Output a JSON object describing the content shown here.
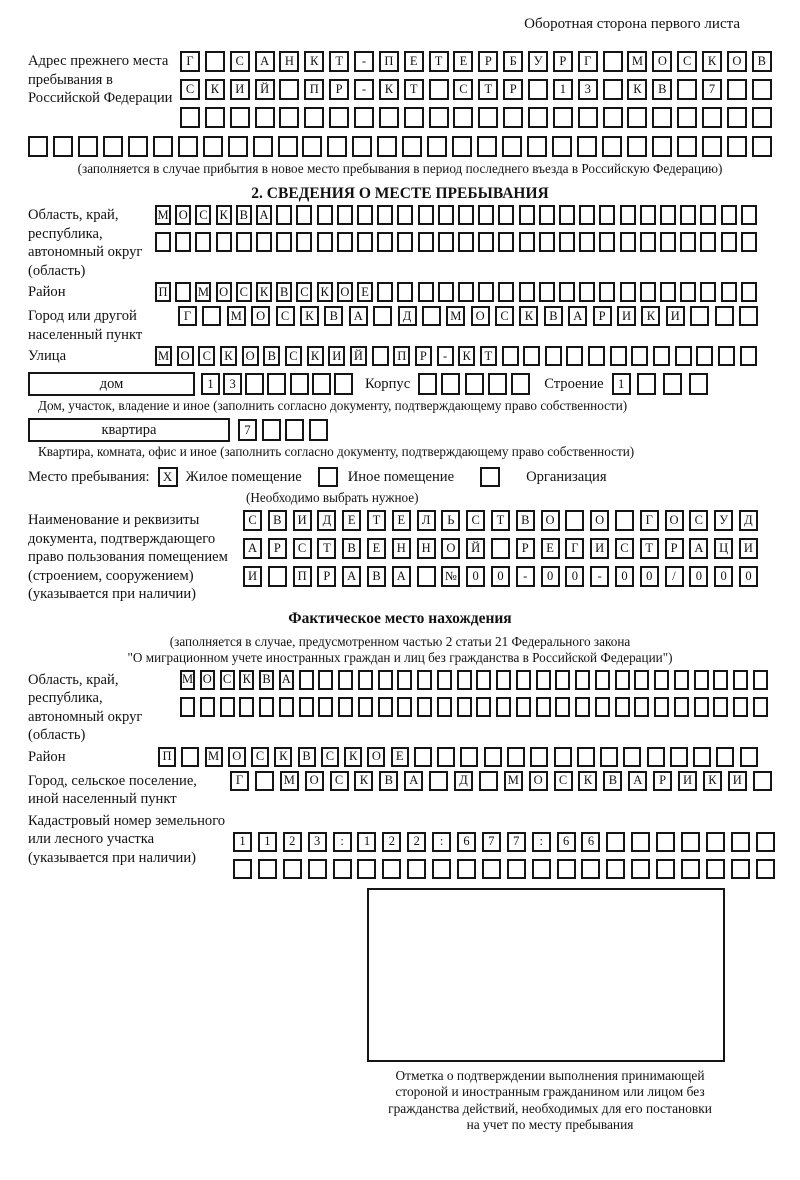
{
  "page": {
    "side_note": "Оборотная сторона первого листа"
  },
  "prev_address": {
    "label": "Адрес прежнего места пребывания в Российской Федерации",
    "row1": {
      "count": 24,
      "cells": "Г САНКТ-ПЕТЕРБУРГ МОСКОВ"
    },
    "row2": {
      "count": 24,
      "cells": "СКИЙ ПР-КТ СТР 13 КВ 7"
    },
    "row3": {
      "count": 24,
      "cells": ""
    },
    "row4": {
      "count": 30,
      "cells": ""
    },
    "note": "(заполняется в случае прибытия в новое место пребывания в период последнего въезда в Российскую Федерацию)"
  },
  "section2": {
    "title": "2. СВЕДЕНИЯ О МЕСТЕ ПРЕБЫВАНИЯ",
    "region": {
      "label": "Область, край, республика, автономный округ (область)",
      "row1": {
        "count": 30,
        "cells": "МОСКВА"
      },
      "row2": {
        "count": 30,
        "cells": ""
      }
    },
    "district": {
      "label": "Район",
      "row": {
        "count": 30,
        "cells": "П МОСКВСКОЕ"
      }
    },
    "city": {
      "label": "Город или другой населенный пункт",
      "row": {
        "count": 24,
        "cells": "Г МОСКВА Д МОСКВАРИКИ"
      }
    },
    "street": {
      "label": "Улица",
      "row": {
        "count": 28,
        "cells": "МОСКОВСКИЙ ПР-КТ"
      }
    },
    "house": {
      "box_label": "дом",
      "row": {
        "count": 7,
        "cells": "13"
      },
      "korpus_label": "Корпус",
      "korpus_row": {
        "count": 5,
        "cells": ""
      },
      "stroenie_label": "Строение",
      "stroenie_row": {
        "count": 4,
        "cells": "1"
      },
      "note": "Дом, участок, владение и иное (заполнить согласно документу, подтверждающему право собственности)"
    },
    "apartment": {
      "box_label": "квартира",
      "row": {
        "count": 4,
        "cells": "7"
      },
      "note": "Квартира, комната, офис и иное (заполнить согласно документу, подтверждающему право собственности)"
    },
    "stay_type": {
      "label": "Место пребывания:",
      "options": [
        {
          "label": "Жилое помещение",
          "mark": "X"
        },
        {
          "label": "Иное помещение",
          "mark": ""
        },
        {
          "label": "Организация",
          "mark": ""
        }
      ],
      "note": "(Необходимо выбрать нужное)"
    },
    "document": {
      "label": "Наименование и реквизиты документа, подтверждающего право пользования помещением (строением, сооружением) (указывается при наличии)",
      "row1": {
        "count": 21,
        "cells": "СВИДЕТЕЛЬСТВО О ГОСУД"
      },
      "row2": {
        "count": 21,
        "cells": "АРСТВЕННОЙ РЕГИСТРАЦИ"
      },
      "row3": {
        "count": 21,
        "cells": "И ПРАВА №00-00-00/000"
      }
    }
  },
  "actual_location": {
    "title": "Фактическое место нахождения",
    "note_lines": [
      "(заполняется в случае, предусмотренном частью 2 статьи 21 Федерального закона",
      "\"О миграционном учете иностранных граждан и лиц без гражданства в Российской Федерации\")"
    ],
    "region": {
      "label": "Область, край, республика, автономный округ (область)",
      "row1": {
        "count": 30,
        "cells": "МОСКВА"
      },
      "row2": {
        "count": 30,
        "cells": ""
      }
    },
    "district": {
      "label": "Район",
      "row": {
        "count": 26,
        "cells": "П МОСКВСКОЕ"
      }
    },
    "city": {
      "label": "Город, сельское поселение, иной населенный пункт",
      "row": {
        "count": 22,
        "cells": "Г МОСКВА Д МОСКВАРИКИ"
      }
    },
    "cadastral": {
      "label": "Кадастровый номер земельного или лесного участка (указывается при наличии)",
      "row1": {
        "count": 22,
        "cells": "1123:122:677:66"
      },
      "row2": {
        "count": 22,
        "cells": ""
      }
    },
    "stamp_note_lines": [
      "Отметка о подтверждении выполнения принимающей",
      "стороной и иностранным гражданином или лицом без",
      "гражданства действий, необходимых для его постановки",
      "на учет по месту пребывания"
    ]
  }
}
